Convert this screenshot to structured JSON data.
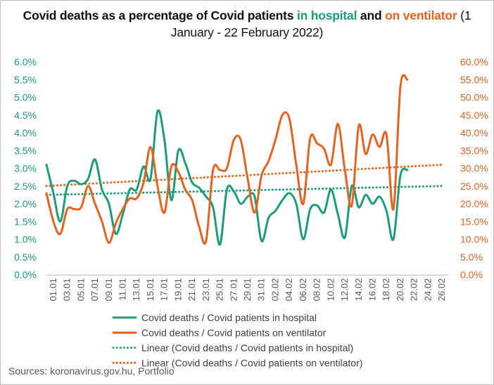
{
  "title": {
    "part1": "Covid deaths as a percentage of Covid patients ",
    "part2": "in hospital",
    "part3": " and ",
    "part4": "on ventilator",
    "part5": " (1 January - 22 February 2022)"
  },
  "source": "Sources: koronavirus.gov.hu, Portfolio",
  "colors": {
    "hospital": "#1a9e7a",
    "ventilator": "#e8621f",
    "axis": "#bfbfbf",
    "text": "#595959"
  },
  "chart_data": {
    "type": "line",
    "title": "Covid deaths as a percentage of Covid patients in hospital and on ventilator (1 January - 22 February 2022)",
    "x_ticks": [
      "01.01",
      "03.01",
      "05.01",
      "07.01",
      "09.01",
      "11.01",
      "13.01",
      "15.01",
      "17.01",
      "19.01",
      "21.01",
      "23.01",
      "25.01",
      "27.01",
      "29.01",
      "31.01",
      "02.02",
      "04.02",
      "06.02",
      "08.02",
      "10.02",
      "12.02",
      "14.02",
      "16.02",
      "18.02",
      "20.02",
      "22.02",
      "24.02",
      "26.02"
    ],
    "y_left": {
      "min": 0,
      "max": 6,
      "step": 0.5,
      "ticks": [
        "0.0%",
        "0.5%",
        "1.0%",
        "1.5%",
        "2.0%",
        "2.5%",
        "3.0%",
        "3.5%",
        "4.0%",
        "4.5%",
        "5.0%",
        "5.5%",
        "6.0%"
      ]
    },
    "y_right": {
      "min": 0,
      "max": 60,
      "step": 5,
      "ticks": [
        "0.0%",
        "5.0%",
        "10.0%",
        "15.0%",
        "20.0%",
        "25.0%",
        "30.0%",
        "35.0%",
        "40.0%",
        "45.0%",
        "50.0%",
        "55.0%",
        "60.0%"
      ]
    },
    "legend_position": "bottom",
    "series": [
      {
        "name": "Covid deaths / Covid patients in hospital",
        "axis": "left",
        "style": "solid",
        "values": [
          3.1,
          2.3,
          1.5,
          2.5,
          2.65,
          2.55,
          2.7,
          3.25,
          2.4,
          2.0,
          1.15,
          1.7,
          2.4,
          2.4,
          3.05,
          2.7,
          4.6,
          3.8,
          2.1,
          3.5,
          3.15,
          2.6,
          2.45,
          2.2,
          1.9,
          0.85,
          2.4,
          2.35,
          2.0,
          2.2,
          2.2,
          0.95,
          1.6,
          1.8,
          2.1,
          2.3,
          2.0,
          1.0,
          1.85,
          1.95,
          1.75,
          2.4,
          1.7,
          1.05,
          2.5,
          1.9,
          2.25,
          2.0,
          2.2,
          1.8,
          1.0,
          2.8,
          2.95
        ]
      },
      {
        "name": "Covid deaths / Covid patients on ventilator",
        "axis": "right",
        "style": "solid",
        "values": [
          23,
          15,
          11.5,
          18.5,
          18.5,
          19,
          25,
          20,
          15,
          9,
          14.5,
          18.5,
          21.5,
          21.5,
          26,
          36,
          25,
          17.5,
          30.5,
          29,
          24,
          21,
          13.5,
          9.5,
          29.5,
          29.5,
          30,
          38,
          38,
          27,
          17.5,
          28,
          32,
          38,
          45,
          44,
          31,
          20,
          38.5,
          37,
          35.5,
          31,
          42.5,
          29.5,
          19.5,
          42,
          34,
          39.5,
          36,
          39.5,
          18.5,
          53,
          55
        ]
      },
      {
        "name": "Linear (Covid deaths / Covid patients in hospital)",
        "axis": "left",
        "style": "dotted",
        "start": 2.25,
        "end": 2.5
      },
      {
        "name": "Linear (Covid deaths / Covid patients on ventilator)",
        "axis": "right",
        "style": "dotted",
        "start": 25,
        "end": 31
      }
    ]
  }
}
